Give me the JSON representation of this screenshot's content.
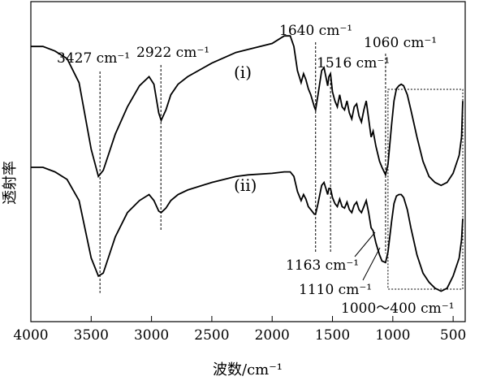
{
  "chart_data": {
    "type": "line",
    "title": "",
    "xlabel": "波数/cm⁻¹",
    "ylabel": "透射率",
    "xlim": [
      4000,
      400
    ],
    "x_reversed": true,
    "grid": false,
    "xticks": [
      4000,
      3500,
      3000,
      2500,
      2000,
      1500,
      1000,
      500
    ],
    "xtick_labels": [
      "4000",
      "3500",
      "3000",
      "2500",
      "2000",
      "1500",
      "1000",
      "500"
    ],
    "series": [
      {
        "name": "(i)",
        "points": [
          [
            4000,
            0.9
          ],
          [
            3900,
            0.9
          ],
          [
            3800,
            0.885
          ],
          [
            3700,
            0.86
          ],
          [
            3600,
            0.78
          ],
          [
            3500,
            0.56
          ],
          [
            3440,
            0.47
          ],
          [
            3400,
            0.49
          ],
          [
            3300,
            0.61
          ],
          [
            3200,
            0.7
          ],
          [
            3100,
            0.77
          ],
          [
            3020,
            0.8
          ],
          [
            2980,
            0.775
          ],
          [
            2940,
            0.68
          ],
          [
            2920,
            0.655
          ],
          [
            2880,
            0.69
          ],
          [
            2840,
            0.74
          ],
          [
            2780,
            0.775
          ],
          [
            2700,
            0.8
          ],
          [
            2500,
            0.845
          ],
          [
            2300,
            0.88
          ],
          [
            2200,
            0.89
          ],
          [
            2000,
            0.91
          ],
          [
            1900,
            0.935
          ],
          [
            1850,
            0.935
          ],
          [
            1820,
            0.9
          ],
          [
            1790,
            0.82
          ],
          [
            1760,
            0.78
          ],
          [
            1740,
            0.81
          ],
          [
            1720,
            0.79
          ],
          [
            1700,
            0.76
          ],
          [
            1680,
            0.74
          ],
          [
            1650,
            0.7
          ],
          [
            1640,
            0.69
          ],
          [
            1620,
            0.74
          ],
          [
            1590,
            0.82
          ],
          [
            1570,
            0.83
          ],
          [
            1555,
            0.8
          ],
          [
            1540,
            0.77
          ],
          [
            1530,
            0.8
          ],
          [
            1516,
            0.81
          ],
          [
            1500,
            0.75
          ],
          [
            1480,
            0.72
          ],
          [
            1460,
            0.7
          ],
          [
            1440,
            0.74
          ],
          [
            1420,
            0.7
          ],
          [
            1400,
            0.69
          ],
          [
            1380,
            0.72
          ],
          [
            1360,
            0.68
          ],
          [
            1340,
            0.66
          ],
          [
            1320,
            0.7
          ],
          [
            1300,
            0.71
          ],
          [
            1280,
            0.67
          ],
          [
            1260,
            0.65
          ],
          [
            1240,
            0.69
          ],
          [
            1220,
            0.72
          ],
          [
            1200,
            0.66
          ],
          [
            1180,
            0.6
          ],
          [
            1163,
            0.62
          ],
          [
            1140,
            0.57
          ],
          [
            1110,
            0.52
          ],
          [
            1090,
            0.5
          ],
          [
            1060,
            0.475
          ],
          [
            1040,
            0.51
          ],
          [
            1010,
            0.64
          ],
          [
            990,
            0.72
          ],
          [
            970,
            0.76
          ],
          [
            950,
            0.77
          ],
          [
            930,
            0.775
          ],
          [
            910,
            0.77
          ],
          [
            880,
            0.74
          ],
          [
            850,
            0.69
          ],
          [
            800,
            0.6
          ],
          [
            750,
            0.52
          ],
          [
            700,
            0.47
          ],
          [
            650,
            0.45
          ],
          [
            600,
            0.44
          ],
          [
            550,
            0.45
          ],
          [
            500,
            0.48
          ],
          [
            450,
            0.54
          ],
          [
            430,
            0.6
          ],
          [
            420,
            0.72
          ]
        ]
      },
      {
        "name": "(ii)",
        "points": [
          [
            4000,
            0.5
          ],
          [
            3900,
            0.5
          ],
          [
            3800,
            0.485
          ],
          [
            3700,
            0.46
          ],
          [
            3600,
            0.39
          ],
          [
            3500,
            0.2
          ],
          [
            3440,
            0.14
          ],
          [
            3400,
            0.15
          ],
          [
            3300,
            0.27
          ],
          [
            3200,
            0.35
          ],
          [
            3100,
            0.39
          ],
          [
            3020,
            0.41
          ],
          [
            2980,
            0.39
          ],
          [
            2940,
            0.355
          ],
          [
            2920,
            0.35
          ],
          [
            2880,
            0.365
          ],
          [
            2840,
            0.39
          ],
          [
            2780,
            0.41
          ],
          [
            2700,
            0.425
          ],
          [
            2500,
            0.45
          ],
          [
            2300,
            0.47
          ],
          [
            2200,
            0.475
          ],
          [
            2000,
            0.48
          ],
          [
            1900,
            0.485
          ],
          [
            1850,
            0.485
          ],
          [
            1820,
            0.47
          ],
          [
            1790,
            0.42
          ],
          [
            1760,
            0.39
          ],
          [
            1740,
            0.41
          ],
          [
            1720,
            0.395
          ],
          [
            1700,
            0.37
          ],
          [
            1680,
            0.36
          ],
          [
            1650,
            0.345
          ],
          [
            1640,
            0.345
          ],
          [
            1620,
            0.38
          ],
          [
            1590,
            0.44
          ],
          [
            1570,
            0.45
          ],
          [
            1555,
            0.43
          ],
          [
            1540,
            0.41
          ],
          [
            1530,
            0.43
          ],
          [
            1516,
            0.43
          ],
          [
            1500,
            0.4
          ],
          [
            1480,
            0.38
          ],
          [
            1460,
            0.37
          ],
          [
            1440,
            0.395
          ],
          [
            1420,
            0.37
          ],
          [
            1400,
            0.365
          ],
          [
            1380,
            0.385
          ],
          [
            1360,
            0.36
          ],
          [
            1340,
            0.35
          ],
          [
            1320,
            0.375
          ],
          [
            1300,
            0.385
          ],
          [
            1280,
            0.36
          ],
          [
            1260,
            0.35
          ],
          [
            1240,
            0.37
          ],
          [
            1220,
            0.39
          ],
          [
            1200,
            0.35
          ],
          [
            1180,
            0.3
          ],
          [
            1163,
            0.29
          ],
          [
            1140,
            0.25
          ],
          [
            1110,
            0.21
          ],
          [
            1090,
            0.19
          ],
          [
            1060,
            0.185
          ],
          [
            1040,
            0.22
          ],
          [
            1010,
            0.32
          ],
          [
            990,
            0.38
          ],
          [
            970,
            0.405
          ],
          [
            950,
            0.41
          ],
          [
            930,
            0.41
          ],
          [
            910,
            0.4
          ],
          [
            880,
            0.36
          ],
          [
            850,
            0.3
          ],
          [
            800,
            0.21
          ],
          [
            750,
            0.15
          ],
          [
            700,
            0.12
          ],
          [
            650,
            0.1
          ],
          [
            600,
            0.09
          ],
          [
            550,
            0.1
          ],
          [
            500,
            0.14
          ],
          [
            450,
            0.2
          ],
          [
            430,
            0.26
          ],
          [
            420,
            0.33
          ]
        ]
      }
    ],
    "series_labels": [
      "(i)",
      "(ii)"
    ],
    "peak_markers": [
      3427,
      2922,
      1640,
      1516,
      1060
    ],
    "annotations": [
      {
        "id": "a3427",
        "wn": "3427",
        "text": "cm⁻¹"
      },
      {
        "id": "a2922",
        "wn": "2922",
        "text": "cm⁻¹"
      },
      {
        "id": "a1640",
        "wn": "1640",
        "text": "cm⁻¹"
      },
      {
        "id": "a1516",
        "wn": "1516",
        "text": "cm⁻¹"
      },
      {
        "id": "a1060",
        "wn": "1060",
        "text": "cm⁻¹"
      },
      {
        "id": "a1163",
        "wn": "1163",
        "text": "cm⁻¹"
      },
      {
        "id": "a1110",
        "wn": "1110",
        "text": "cm⁻¹"
      },
      {
        "id": "a1000",
        "wn": "1000～400",
        "text": "cm⁻¹"
      }
    ],
    "highlight_region": [
      1040,
      420
    ]
  }
}
